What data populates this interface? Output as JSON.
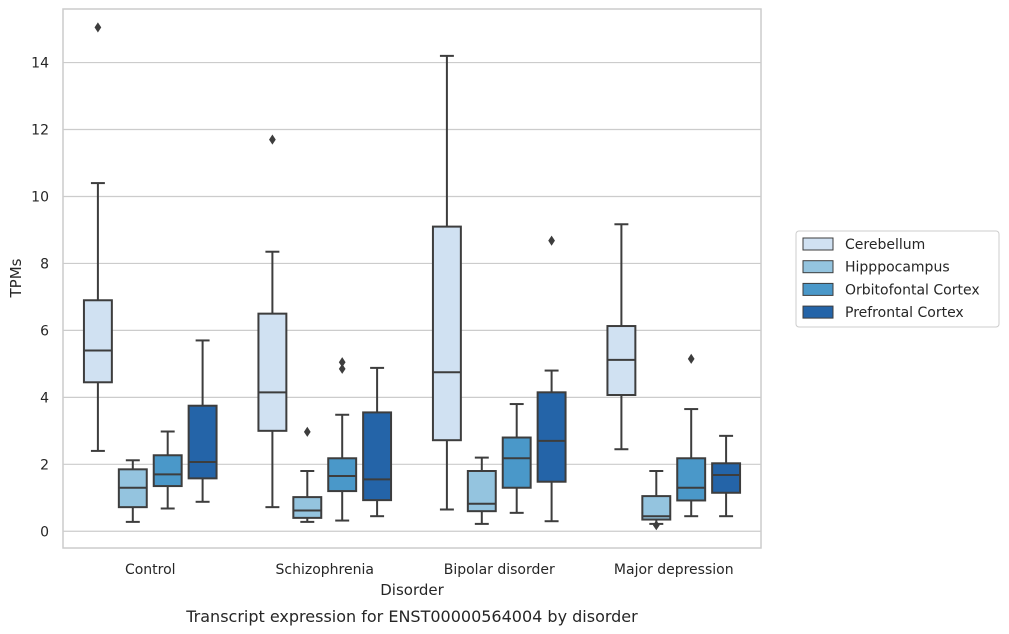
{
  "caption": "Transcript expression for ENST00000564004 by disorder",
  "chart_data": {
    "type": "box",
    "xlabel": "Disorder",
    "ylabel": "TPMs",
    "ylim": [
      -0.5,
      15.6
    ],
    "yticks": [
      0,
      2,
      4,
      6,
      8,
      10,
      12,
      14
    ],
    "grid": "horizontal",
    "legend_position": "right",
    "categories": [
      "Control",
      "Schizophrenia",
      "Bipolar disorder",
      "Major depression"
    ],
    "series": [
      {
        "name": "Cerebellum",
        "color": "#d0e1f2",
        "boxes": [
          {
            "whislo": 2.4,
            "q1": 4.45,
            "med": 5.4,
            "q3": 6.9,
            "whishi": 10.4,
            "fliers": [
              15.05
            ]
          },
          {
            "whislo": 0.72,
            "q1": 3.0,
            "med": 4.15,
            "q3": 6.5,
            "whishi": 8.35,
            "fliers": [
              11.7
            ]
          },
          {
            "whislo": 0.65,
            "q1": 2.72,
            "med": 4.75,
            "q3": 9.1,
            "whishi": 14.2,
            "fliers": []
          },
          {
            "whislo": 2.45,
            "q1": 4.07,
            "med": 5.12,
            "q3": 6.13,
            "whishi": 9.17,
            "fliers": []
          }
        ]
      },
      {
        "name": "Hipppocampus",
        "color": "#94c4df",
        "boxes": [
          {
            "whislo": 0.28,
            "q1": 0.72,
            "med": 1.3,
            "q3": 1.85,
            "whishi": 2.12,
            "fliers": []
          },
          {
            "whislo": 0.28,
            "q1": 0.4,
            "med": 0.62,
            "q3": 1.02,
            "whishi": 1.8,
            "fliers": [
              2.97
            ]
          },
          {
            "whislo": 0.22,
            "q1": 0.6,
            "med": 0.82,
            "q3": 1.8,
            "whishi": 2.2,
            "fliers": []
          },
          {
            "whislo": 0.22,
            "q1": 0.35,
            "med": 0.45,
            "q3": 1.05,
            "whishi": 1.8,
            "fliers": [
              0.18
            ]
          }
        ]
      },
      {
        "name": "Orbitofontal Cortex",
        "color": "#4a98c9",
        "boxes": [
          {
            "whislo": 0.68,
            "q1": 1.35,
            "med": 1.7,
            "q3": 2.27,
            "whishi": 2.98,
            "fliers": []
          },
          {
            "whislo": 0.32,
            "q1": 1.2,
            "med": 1.65,
            "q3": 2.18,
            "whishi": 3.48,
            "fliers": [
              4.85,
              5.05
            ]
          },
          {
            "whislo": 0.55,
            "q1": 1.3,
            "med": 2.18,
            "q3": 2.8,
            "whishi": 3.8,
            "fliers": []
          },
          {
            "whislo": 0.45,
            "q1": 0.92,
            "med": 1.3,
            "q3": 2.18,
            "whishi": 3.65,
            "fliers": [
              5.15
            ]
          }
        ]
      },
      {
        "name": "Prefrontal Cortex",
        "color": "#2464a8",
        "boxes": [
          {
            "whislo": 0.88,
            "q1": 1.58,
            "med": 2.07,
            "q3": 3.75,
            "whishi": 5.7,
            "fliers": []
          },
          {
            "whislo": 0.45,
            "q1": 0.93,
            "med": 1.55,
            "q3": 3.55,
            "whishi": 4.88,
            "fliers": []
          },
          {
            "whislo": 0.3,
            "q1": 1.48,
            "med": 2.7,
            "q3": 4.15,
            "whishi": 4.8,
            "fliers": [
              8.68
            ]
          },
          {
            "whislo": 0.45,
            "q1": 1.15,
            "med": 1.68,
            "q3": 2.03,
            "whishi": 2.85,
            "fliers": []
          }
        ]
      }
    ]
  }
}
